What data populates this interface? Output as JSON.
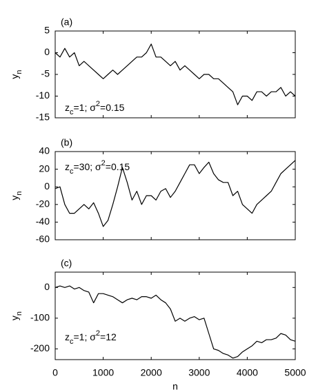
{
  "chart_data": [
    {
      "type": "line",
      "panel_label": "(a)",
      "ylabel": [
        {
          "text": "y"
        },
        {
          "text": "n",
          "style": "sub"
        }
      ],
      "annotation": [
        {
          "text": "z"
        },
        {
          "text": "c",
          "style": "sub"
        },
        {
          "text": "=1; σ"
        },
        {
          "text": "2",
          "style": "sup"
        },
        {
          "text": "=0.15"
        }
      ],
      "x": [
        0,
        100,
        200,
        300,
        400,
        500,
        600,
        700,
        800,
        900,
        1000,
        1100,
        1200,
        1300,
        1400,
        1500,
        1600,
        1700,
        1800,
        1900,
        2000,
        2100,
        2200,
        2300,
        2400,
        2500,
        2600,
        2700,
        2800,
        2900,
        3000,
        3100,
        3200,
        3300,
        3400,
        3500,
        3600,
        3700,
        3800,
        3900,
        4000,
        4100,
        4200,
        4300,
        4400,
        4500,
        4600,
        4700,
        4800,
        4900,
        5000
      ],
      "series": [
        {
          "color": "#000000",
          "values": [
            0,
            -1,
            1,
            -1,
            0,
            -3,
            -2,
            -3,
            -4,
            -5,
            -6,
            -5,
            -4,
            -5,
            -4,
            -3,
            -2,
            -1,
            -1,
            0,
            2,
            -1,
            -1,
            -2,
            -3,
            -2,
            -4,
            -3,
            -4,
            -5,
            -6,
            -5,
            -5,
            -6,
            -6,
            -7,
            -8,
            -9,
            -12,
            -10,
            -10,
            -11,
            -9,
            -9,
            -10,
            -9,
            -9,
            -8,
            -10,
            -9,
            -10
          ]
        }
      ],
      "xlim": [
        0,
        5000
      ],
      "xticks": [
        0,
        1000,
        2000,
        3000,
        4000,
        5000
      ],
      "show_xticklabels": false,
      "ylim": [
        -15,
        5
      ],
      "yticks": [
        5,
        0,
        -5,
        -10,
        -15
      ]
    },
    {
      "type": "line",
      "panel_label": "(b)",
      "ylabel": [
        {
          "text": "y"
        },
        {
          "text": "n",
          "style": "sub"
        }
      ],
      "annotation": [
        {
          "text": "z"
        },
        {
          "text": "c",
          "style": "sub"
        },
        {
          "text": "=30; σ"
        },
        {
          "text": "2",
          "style": "sup"
        },
        {
          "text": "=0.15"
        }
      ],
      "x": [
        0,
        100,
        200,
        300,
        400,
        500,
        600,
        700,
        800,
        900,
        1000,
        1100,
        1200,
        1300,
        1400,
        1500,
        1600,
        1700,
        1800,
        1900,
        2000,
        2100,
        2200,
        2300,
        2400,
        2500,
        2600,
        2700,
        2800,
        2900,
        3000,
        3100,
        3200,
        3300,
        3400,
        3500,
        3600,
        3700,
        3800,
        3900,
        4000,
        4100,
        4200,
        4300,
        4400,
        4500,
        4600,
        4700,
        4800,
        4900,
        5000
      ],
      "series": [
        {
          "color": "#000000",
          "values": [
            -2,
            0,
            -20,
            -30,
            -30,
            -25,
            -20,
            -25,
            -18,
            -30,
            -45,
            -38,
            -20,
            0,
            22,
            5,
            -15,
            -5,
            -20,
            -10,
            -10,
            -15,
            -5,
            -2,
            -12,
            -5,
            5,
            15,
            25,
            25,
            15,
            22,
            28,
            15,
            8,
            5,
            5,
            -10,
            -5,
            -20,
            -25,
            -30,
            -20,
            -15,
            -10,
            -5,
            5,
            15,
            20,
            25,
            30
          ]
        }
      ],
      "xlim": [
        0,
        5000
      ],
      "xticks": [
        0,
        1000,
        2000,
        3000,
        4000,
        5000
      ],
      "show_xticklabels": false,
      "ylim": [
        -60,
        40
      ],
      "yticks": [
        40,
        20,
        0,
        -20,
        -40,
        -60
      ]
    },
    {
      "type": "line",
      "panel_label": "(c)",
      "ylabel": [
        {
          "text": "y"
        },
        {
          "text": "n",
          "style": "sub"
        }
      ],
      "annotation": [
        {
          "text": "z"
        },
        {
          "text": "c",
          "style": "sub"
        },
        {
          "text": "=1; σ"
        },
        {
          "text": "2",
          "style": "sup"
        },
        {
          "text": "=12"
        }
      ],
      "xlabel": "n",
      "x": [
        0,
        100,
        200,
        300,
        400,
        500,
        600,
        700,
        800,
        900,
        1000,
        1100,
        1200,
        1300,
        1400,
        1500,
        1600,
        1700,
        1800,
        1900,
        2000,
        2100,
        2200,
        2300,
        2400,
        2500,
        2600,
        2700,
        2800,
        2900,
        3000,
        3100,
        3200,
        3300,
        3400,
        3500,
        3600,
        3700,
        3800,
        3900,
        4000,
        4100,
        4200,
        4300,
        4400,
        4500,
        4600,
        4700,
        4800,
        4900,
        5000
      ],
      "series": [
        {
          "color": "#000000",
          "values": [
            0,
            5,
            0,
            5,
            -5,
            0,
            -10,
            -15,
            -50,
            -20,
            -20,
            -25,
            -30,
            -40,
            -50,
            -40,
            -35,
            -40,
            -30,
            -30,
            -35,
            -25,
            -40,
            -50,
            -70,
            -110,
            -100,
            -110,
            -100,
            -95,
            -105,
            -100,
            -150,
            -200,
            -205,
            -215,
            -220,
            -230,
            -225,
            -210,
            -200,
            -190,
            -175,
            -180,
            -170,
            -170,
            -165,
            -150,
            -155,
            -170,
            -175
          ]
        }
      ],
      "xlim": [
        0,
        5000
      ],
      "xticks": [
        0,
        1000,
        2000,
        3000,
        4000,
        5000
      ],
      "show_xticklabels": true,
      "ylim": [
        -235,
        50
      ],
      "yticks": [
        0,
        -100,
        -200
      ]
    }
  ]
}
